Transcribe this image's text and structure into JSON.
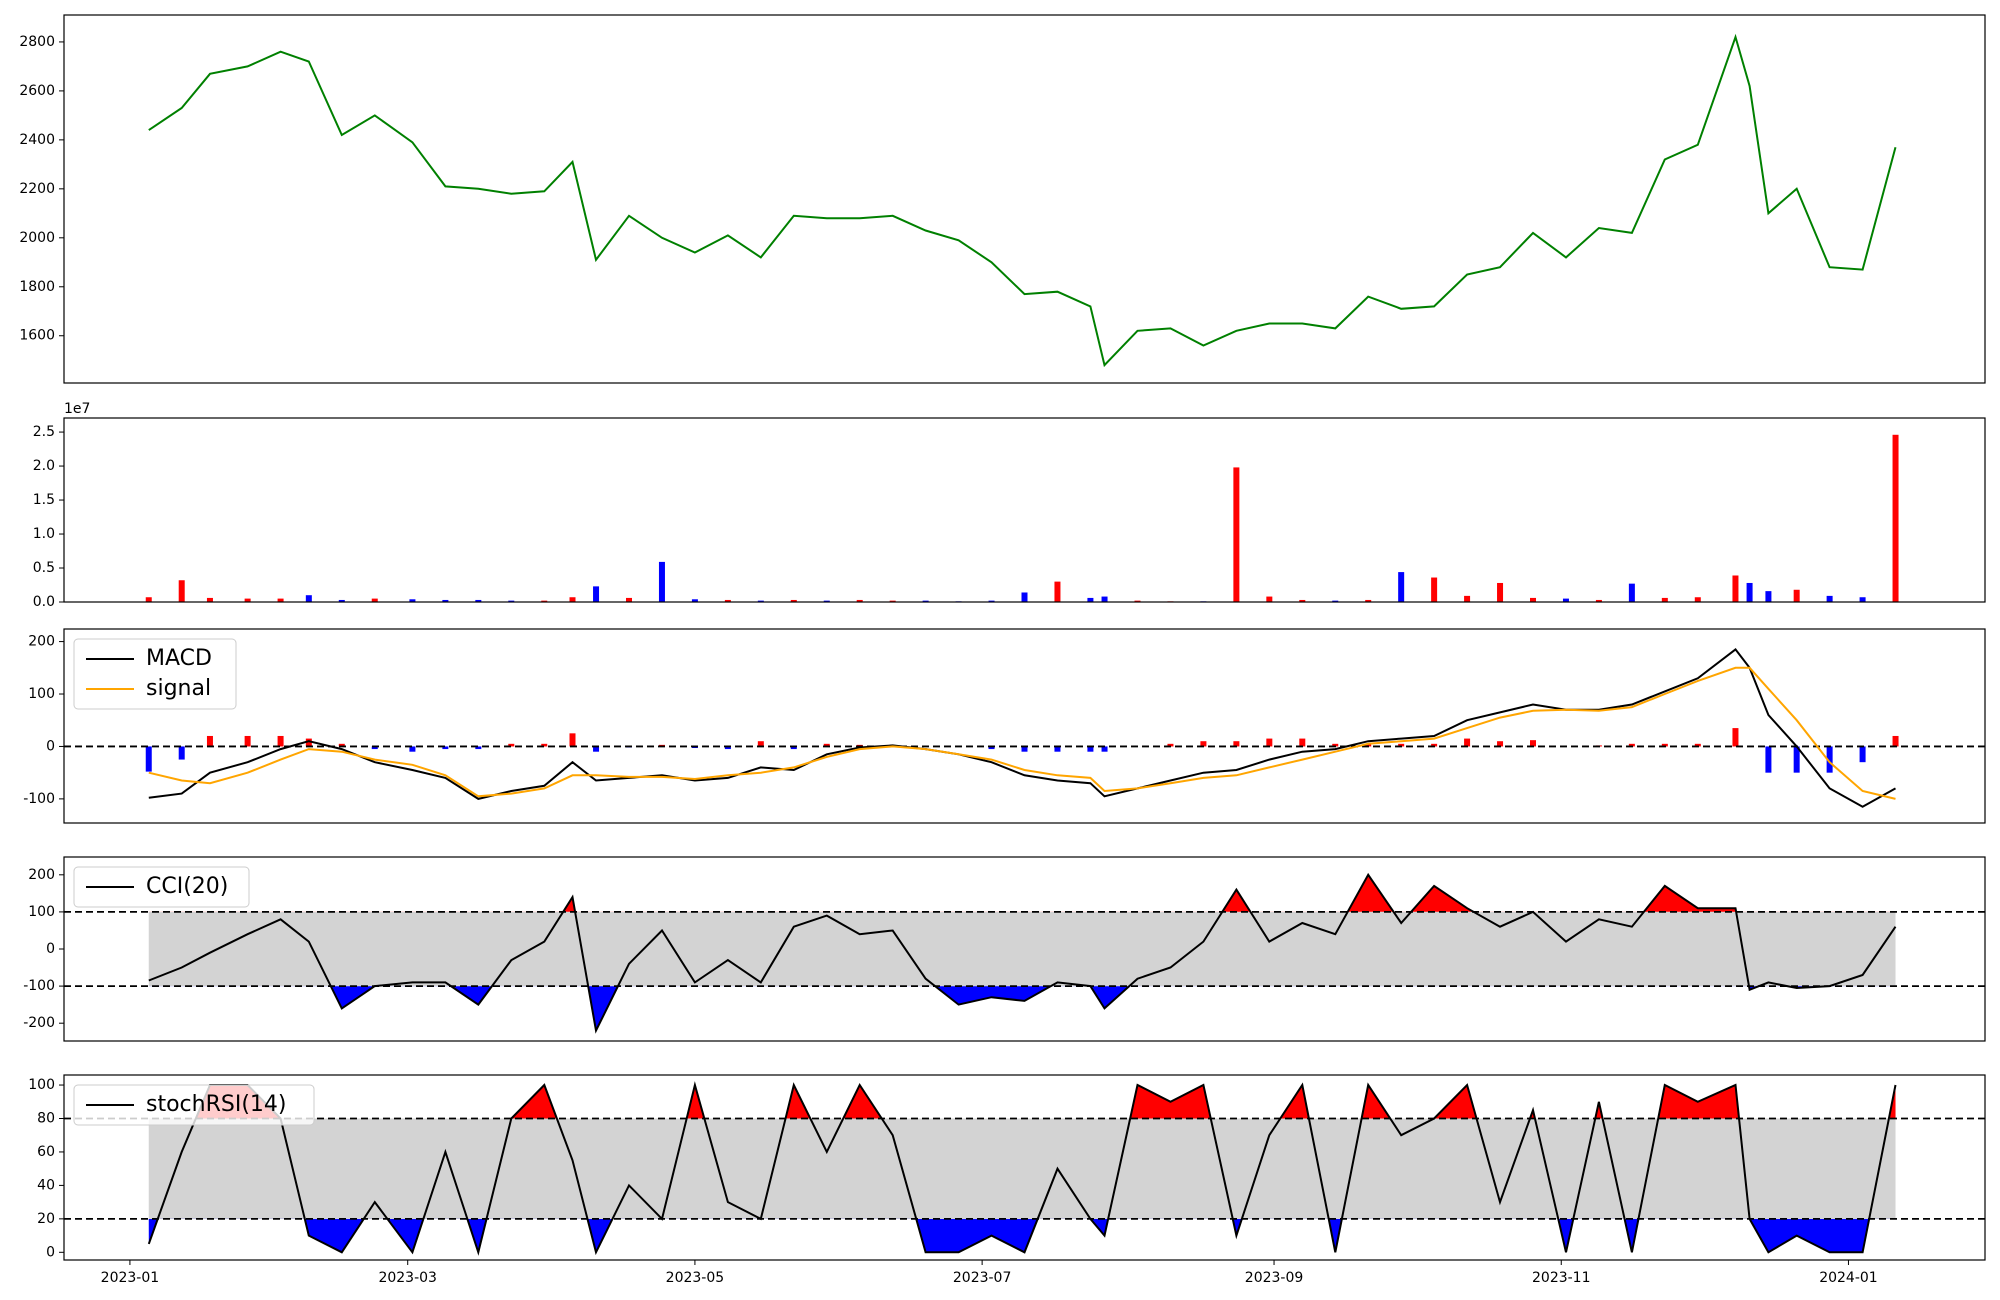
{
  "chart_data": [
    {
      "type": "line",
      "x": [
        "2023-01-05",
        "2023-01-12",
        "2023-01-18",
        "2023-01-26",
        "2023-02-02",
        "2023-02-08",
        "2023-02-15",
        "2023-02-22",
        "2023-03-02",
        "2023-03-09",
        "2023-03-16",
        "2023-03-23",
        "2023-03-30",
        "2023-04-05",
        "2023-04-10",
        "2023-04-17",
        "2023-04-24",
        "2023-05-01",
        "2023-05-08",
        "2023-05-15",
        "2023-05-22",
        "2023-05-29",
        "2023-06-05",
        "2023-06-12",
        "2023-06-19",
        "2023-06-26",
        "2023-07-03",
        "2023-07-10",
        "2023-07-17",
        "2023-07-24",
        "2023-07-27",
        "2023-08-03",
        "2023-08-10",
        "2023-08-17",
        "2023-08-24",
        "2023-08-31",
        "2023-09-07",
        "2023-09-14",
        "2023-09-21",
        "2023-09-28",
        "2023-10-05",
        "2023-10-12",
        "2023-10-19",
        "2023-10-26",
        "2023-11-02",
        "2023-11-09",
        "2023-11-16",
        "2023-11-23",
        "2023-11-30",
        "2023-12-08",
        "2023-12-11",
        "2023-12-15",
        "2023-12-21",
        "2023-12-28",
        "2024-01-04",
        "2024-01-11"
      ],
      "series": [
        {
          "color": "green",
          "values": [
            2440,
            2530,
            2670,
            2700,
            2760,
            2720,
            2420,
            2500,
            2390,
            2210,
            2200,
            2180,
            2190,
            2310,
            1910,
            2090,
            2000,
            1940,
            2010,
            1920,
            2090,
            2080,
            2080,
            2090,
            2030,
            1990,
            1900,
            1770,
            1780,
            1720,
            1480,
            1620,
            1630,
            1560,
            1620,
            1650,
            1650,
            1630,
            1760,
            1710,
            1720,
            1850,
            1880,
            2020,
            1920,
            2040,
            2020,
            2320,
            2380,
            2820,
            2620,
            2100,
            2200,
            1880,
            1870,
            2370
          ]
        }
      ],
      "xlim": [
        "2022-12-18",
        "2024-01-30"
      ],
      "ylim": [
        1407,
        2910
      ],
      "yticks": [
        1600,
        1800,
        2000,
        2200,
        2400,
        2600,
        2800
      ]
    },
    {
      "type": "bar",
      "x": [
        "2023-01-05",
        "2023-01-12",
        "2023-01-18",
        "2023-01-26",
        "2023-02-02",
        "2023-02-08",
        "2023-02-15",
        "2023-02-22",
        "2023-03-02",
        "2023-03-09",
        "2023-03-16",
        "2023-03-23",
        "2023-03-30",
        "2023-04-05",
        "2023-04-10",
        "2023-04-17",
        "2023-04-24",
        "2023-05-01",
        "2023-05-08",
        "2023-05-15",
        "2023-05-22",
        "2023-05-29",
        "2023-06-05",
        "2023-06-12",
        "2023-06-19",
        "2023-06-26",
        "2023-07-03",
        "2023-07-10",
        "2023-07-17",
        "2023-07-24",
        "2023-07-27",
        "2023-08-03",
        "2023-08-10",
        "2023-08-17",
        "2023-08-24",
        "2023-08-31",
        "2023-09-07",
        "2023-09-14",
        "2023-09-21",
        "2023-09-28",
        "2023-10-05",
        "2023-10-12",
        "2023-10-19",
        "2023-10-26",
        "2023-11-02",
        "2023-11-09",
        "2023-11-16",
        "2023-11-23",
        "2023-11-30",
        "2023-12-08",
        "2023-12-11",
        "2023-12-15",
        "2023-12-21",
        "2023-12-28",
        "2024-01-04",
        "2024-01-11"
      ],
      "values": [
        700000,
        3200000,
        600000,
        500000,
        500000,
        1000000,
        300000,
        500000,
        400000,
        300000,
        300000,
        200000,
        200000,
        700000,
        2300000,
        600000,
        5900000,
        400000,
        300000,
        200000,
        300000,
        200000,
        300000,
        200000,
        200000,
        100000,
        200000,
        1400000,
        3000000,
        600000,
        800000,
        200000,
        100000,
        100000,
        19800000,
        800000,
        300000,
        200000,
        300000,
        4400000,
        3600000,
        900000,
        2800000,
        600000,
        500000,
        300000,
        2700000,
        600000,
        700000,
        3900000,
        2800000,
        1600000,
        1800000,
        900000,
        700000,
        24600000
      ],
      "up_color": "red",
      "down_color": "blue",
      "xlim": [
        "2022-12-18",
        "2024-01-30"
      ],
      "ylim": [
        0,
        27070000
      ],
      "yticks": [
        {
          "value": 0,
          "label": "0.0"
        },
        {
          "value": 5000000,
          "label": "0.5"
        },
        {
          "value": 10000000,
          "label": "1.0"
        },
        {
          "value": 15000000,
          "label": "1.5"
        },
        {
          "value": 20000000,
          "label": "2.0"
        },
        {
          "value": 25000000,
          "label": "2.5"
        }
      ],
      "offset_label": "1e7"
    },
    {
      "type": "line",
      "x": [
        "2023-01-05",
        "2023-01-12",
        "2023-01-18",
        "2023-01-26",
        "2023-02-02",
        "2023-02-08",
        "2023-02-15",
        "2023-02-22",
        "2023-03-02",
        "2023-03-09",
        "2023-03-16",
        "2023-03-23",
        "2023-03-30",
        "2023-04-05",
        "2023-04-10",
        "2023-04-17",
        "2023-04-24",
        "2023-05-01",
        "2023-05-08",
        "2023-05-15",
        "2023-05-22",
        "2023-05-29",
        "2023-06-05",
        "2023-06-12",
        "2023-06-19",
        "2023-06-26",
        "2023-07-03",
        "2023-07-10",
        "2023-07-17",
        "2023-07-24",
        "2023-07-27",
        "2023-08-03",
        "2023-08-10",
        "2023-08-17",
        "2023-08-24",
        "2023-08-31",
        "2023-09-07",
        "2023-09-14",
        "2023-09-21",
        "2023-09-28",
        "2023-10-05",
        "2023-10-12",
        "2023-10-19",
        "2023-10-26",
        "2023-11-02",
        "2023-11-09",
        "2023-11-16",
        "2023-11-23",
        "2023-11-30",
        "2023-12-08",
        "2023-12-11",
        "2023-12-15",
        "2023-12-21",
        "2023-12-28",
        "2024-01-04",
        "2024-01-11"
      ],
      "series": [
        {
          "type": "bar",
          "up_color": "red",
          "down_color": "blue",
          "values": [
            -48,
            -25,
            20,
            20,
            20,
            15,
            5,
            -5,
            -10,
            -5,
            -5,
            5,
            5,
            25,
            -10,
            -2,
            3,
            -3,
            -5,
            10,
            -5,
            5,
            3,
            2,
            0,
            0,
            -5,
            -10,
            -10,
            -10,
            -10,
            0,
            5,
            10,
            10,
            15,
            15,
            5,
            5,
            5,
            5,
            15,
            10,
            12,
            0,
            2,
            5,
            5,
            5,
            35,
            0,
            -50,
            -50,
            -50,
            -30,
            20
          ]
        },
        {
          "name": "MACD",
          "color": "black",
          "values": [
            -98,
            -90,
            -50,
            -30,
            -5,
            10,
            -5,
            -30,
            -45,
            -60,
            -100,
            -85,
            -75,
            -30,
            -65,
            -60,
            -55,
            -65,
            -60,
            -40,
            -45,
            -15,
            -2,
            2,
            -5,
            -15,
            -30,
            -55,
            -65,
            -70,
            -95,
            -80,
            -65,
            -50,
            -45,
            -25,
            -10,
            -5,
            10,
            15,
            20,
            50,
            65,
            80,
            70,
            70,
            80,
            105,
            130,
            185,
            150,
            60,
            0,
            -80,
            -115,
            -80
          ]
        },
        {
          "name": "signal",
          "color": "orange",
          "values": [
            -50,
            -65,
            -70,
            -50,
            -25,
            -5,
            -10,
            -25,
            -35,
            -55,
            -95,
            -90,
            -80,
            -55,
            -55,
            -58,
            -58,
            -62,
            -55,
            -50,
            -40,
            -20,
            -5,
            0,
            -5,
            -15,
            -25,
            -45,
            -55,
            -60,
            -85,
            -80,
            -70,
            -60,
            -55,
            -40,
            -25,
            -10,
            5,
            10,
            15,
            35,
            55,
            68,
            70,
            68,
            75,
            100,
            125,
            150,
            150,
            110,
            50,
            -30,
            -85,
            -100
          ]
        }
      ],
      "levels": [
        0
      ],
      "legend": "upper left",
      "xlim": [
        "2022-12-18",
        "2024-01-30"
      ],
      "ylim": [
        -146,
        224
      ],
      "yticks": [
        -100,
        0,
        100,
        200
      ]
    },
    {
      "type": "line",
      "x": [
        "2023-01-05",
        "2023-01-12",
        "2023-01-18",
        "2023-01-26",
        "2023-02-02",
        "2023-02-08",
        "2023-02-15",
        "2023-02-22",
        "2023-03-02",
        "2023-03-09",
        "2023-03-16",
        "2023-03-23",
        "2023-03-30",
        "2023-04-05",
        "2023-04-10",
        "2023-04-17",
        "2023-04-24",
        "2023-05-01",
        "2023-05-08",
        "2023-05-15",
        "2023-05-22",
        "2023-05-29",
        "2023-06-05",
        "2023-06-12",
        "2023-06-19",
        "2023-06-26",
        "2023-07-03",
        "2023-07-10",
        "2023-07-17",
        "2023-07-24",
        "2023-07-27",
        "2023-08-03",
        "2023-08-10",
        "2023-08-17",
        "2023-08-24",
        "2023-08-31",
        "2023-09-07",
        "2023-09-14",
        "2023-09-21",
        "2023-09-28",
        "2023-10-05",
        "2023-10-12",
        "2023-10-19",
        "2023-10-26",
        "2023-11-02",
        "2023-11-09",
        "2023-11-16",
        "2023-11-23",
        "2023-11-30",
        "2023-12-08",
        "2023-12-11",
        "2023-12-15",
        "2023-12-21",
        "2023-12-28",
        "2024-01-04",
        "2024-01-11"
      ],
      "series": [
        {
          "name": "CCI(20)",
          "color": "black",
          "values": [
            -85,
            -50,
            -10,
            40,
            80,
            20,
            -160,
            -100,
            -90,
            -90,
            -150,
            -30,
            20,
            140,
            -220,
            -40,
            50,
            -90,
            -30,
            -90,
            60,
            90,
            40,
            50,
            -80,
            -150,
            -130,
            -140,
            -90,
            -100,
            -160,
            -80,
            -50,
            20,
            160,
            20,
            70,
            40,
            200,
            70,
            170,
            110,
            60,
            100,
            20,
            80,
            60,
            170,
            110,
            110,
            -110,
            -90,
            -105,
            -100,
            -70,
            60
          ]
        }
      ],
      "levels": [
        -100,
        100
      ],
      "band_color": "lightgray",
      "above_color": "red",
      "below_color": "blue",
      "legend": "upper left",
      "xlim": [
        "2022-12-18",
        "2024-01-30"
      ],
      "ylim": [
        -248,
        248
      ],
      "yticks": [
        -200,
        -100,
        0,
        100,
        200
      ]
    },
    {
      "type": "line",
      "x": [
        "2023-01-05",
        "2023-01-12",
        "2023-01-18",
        "2023-01-26",
        "2023-02-02",
        "2023-02-08",
        "2023-02-15",
        "2023-02-22",
        "2023-03-02",
        "2023-03-09",
        "2023-03-16",
        "2023-03-23",
        "2023-03-30",
        "2023-04-05",
        "2023-04-10",
        "2023-04-17",
        "2023-04-24",
        "2023-05-01",
        "2023-05-08",
        "2023-05-15",
        "2023-05-22",
        "2023-05-29",
        "2023-06-05",
        "2023-06-12",
        "2023-06-19",
        "2023-06-26",
        "2023-07-03",
        "2023-07-10",
        "2023-07-17",
        "2023-07-24",
        "2023-07-27",
        "2023-08-03",
        "2023-08-10",
        "2023-08-17",
        "2023-08-24",
        "2023-08-31",
        "2023-09-07",
        "2023-09-14",
        "2023-09-21",
        "2023-09-28",
        "2023-10-05",
        "2023-10-12",
        "2023-10-19",
        "2023-10-26",
        "2023-11-02",
        "2023-11-09",
        "2023-11-16",
        "2023-11-23",
        "2023-11-30",
        "2023-12-08",
        "2023-12-11",
        "2023-12-15",
        "2023-12-21",
        "2023-12-28",
        "2024-01-04",
        "2024-01-11"
      ],
      "series": [
        {
          "name": "stochRSI(14)",
          "color": "black",
          "values": [
            5,
            60,
            100,
            100,
            80,
            10,
            0,
            30,
            0,
            60,
            0,
            80,
            100,
            55,
            0,
            40,
            20,
            100,
            30,
            20,
            100,
            60,
            100,
            70,
            0,
            0,
            10,
            0,
            50,
            20,
            10,
            100,
            90,
            100,
            10,
            70,
            100,
            0,
            100,
            70,
            80,
            100,
            30,
            85,
            0,
            90,
            0,
            100,
            90,
            100,
            20,
            0,
            10,
            0,
            0,
            100
          ]
        }
      ],
      "levels": [
        20,
        80
      ],
      "band_color": "lightgray",
      "above_color": "red",
      "below_color": "blue",
      "legend": "upper left",
      "xlim": [
        "2022-12-18",
        "2024-01-30"
      ],
      "ylim": [
        -4.6,
        106
      ],
      "yticks": [
        0,
        20,
        40,
        60,
        80,
        100
      ],
      "xticks": [
        "2023-01",
        "2023-03",
        "2023-05",
        "2023-07",
        "2023-09",
        "2023-11",
        "2024-01"
      ]
    }
  ]
}
